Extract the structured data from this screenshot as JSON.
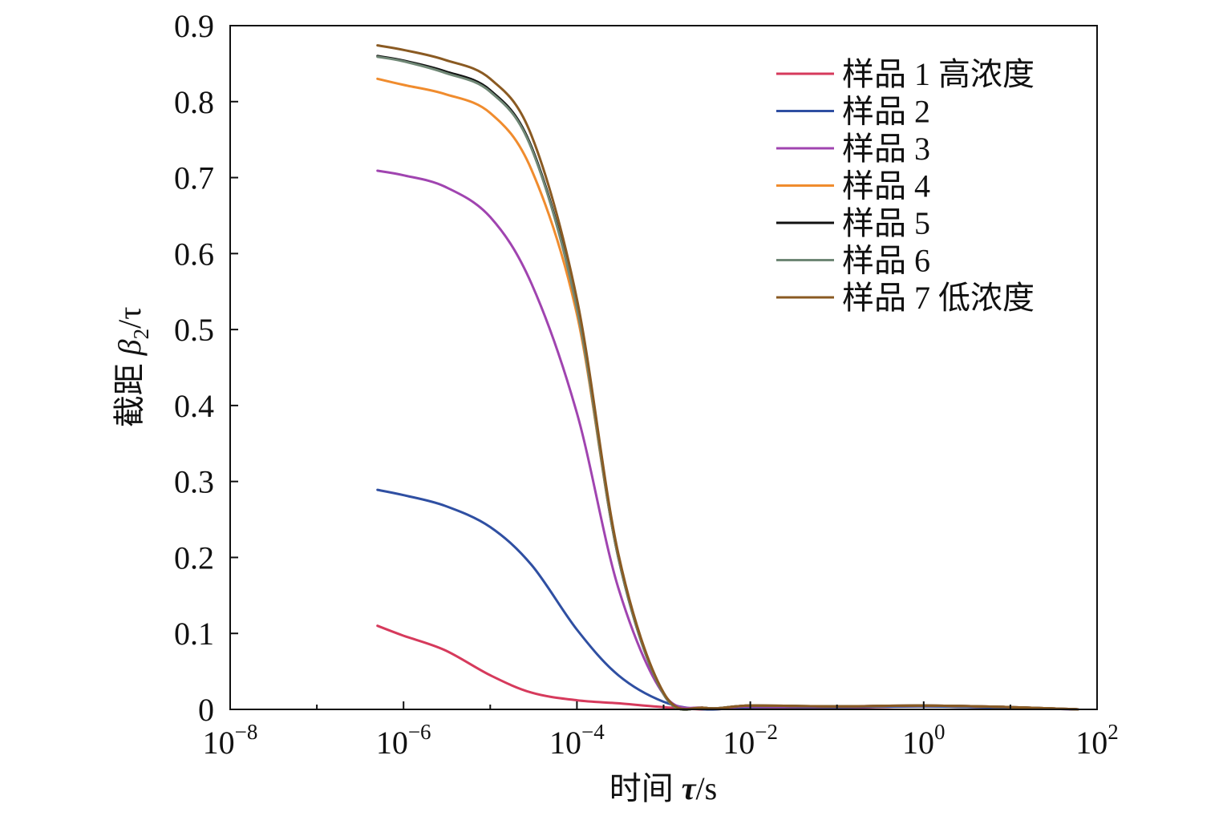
{
  "chart_data": {
    "type": "line",
    "xscale": "log",
    "xlabel": "时间 τ/s",
    "ylabel": "截距 β2/τ",
    "xlim": [
      1e-08,
      100
    ],
    "ylim": [
      0,
      0.9
    ],
    "x_ticks": [
      {
        "value": 1e-08,
        "base": "10",
        "exp": "−8"
      },
      {
        "value": 1e-06,
        "base": "10",
        "exp": "−6"
      },
      {
        "value": 0.0001,
        "base": "10",
        "exp": "−4"
      },
      {
        "value": 0.01,
        "base": "10",
        "exp": "−2"
      },
      {
        "value": 1,
        "base": "10",
        "exp": "0"
      },
      {
        "value": 100,
        "base": "10",
        "exp": "2"
      }
    ],
    "y_ticks": [
      {
        "value": 0,
        "label": "0"
      },
      {
        "value": 0.1,
        "label": "0.1"
      },
      {
        "value": 0.2,
        "label": "0.2"
      },
      {
        "value": 0.3,
        "label": "0.3"
      },
      {
        "value": 0.4,
        "label": "0.4"
      },
      {
        "value": 0.5,
        "label": "0.5"
      },
      {
        "value": 0.6,
        "label": "0.6"
      },
      {
        "value": 0.7,
        "label": "0.7"
      },
      {
        "value": 0.8,
        "label": "0.8"
      },
      {
        "value": 0.9,
        "label": "0.9"
      }
    ],
    "grid": false,
    "legend_position": "top-right",
    "x": [
      5e-07,
      1e-06,
      3e-06,
      1e-05,
      3e-05,
      0.0001,
      0.0003,
      0.001,
      0.003,
      0.01,
      0.1,
      1,
      10,
      60
    ],
    "series": [
      {
        "name": "样品 1 高浓度",
        "color": "#d63a5c",
        "values": [
          0.11,
          0.097,
          0.078,
          0.045,
          0.022,
          0.012,
          0.008,
          0.003,
          0.0,
          0.002,
          0.002,
          0.004,
          0.002,
          0.0
        ]
      },
      {
        "name": "样品 2",
        "color": "#2f4fa2",
        "values": [
          0.289,
          0.282,
          0.268,
          0.24,
          0.19,
          0.105,
          0.045,
          0.01,
          0.0,
          0.003,
          0.003,
          0.004,
          0.002,
          0.0
        ]
      },
      {
        "name": "样品 3",
        "color": "#a044b0",
        "values": [
          0.709,
          0.703,
          0.688,
          0.648,
          0.56,
          0.39,
          0.16,
          0.02,
          0.002,
          0.004,
          0.004,
          0.005,
          0.003,
          0.0
        ]
      },
      {
        "name": "样品 4",
        "color": "#f08c2e",
        "values": [
          0.83,
          0.822,
          0.81,
          0.785,
          0.71,
          0.52,
          0.2,
          0.02,
          0.002,
          0.005,
          0.004,
          0.005,
          0.003,
          0.0
        ]
      },
      {
        "name": "样品 5",
        "color": "#111111",
        "values": [
          0.86,
          0.854,
          0.84,
          0.815,
          0.74,
          0.53,
          0.2,
          0.02,
          0.002,
          0.005,
          0.004,
          0.005,
          0.003,
          0.0
        ]
      },
      {
        "name": "样品 6",
        "color": "#6f8775",
        "values": [
          0.859,
          0.853,
          0.838,
          0.813,
          0.738,
          0.528,
          0.2,
          0.02,
          0.002,
          0.005,
          0.004,
          0.005,
          0.003,
          0.0
        ]
      },
      {
        "name": "样品 7 低浓度",
        "color": "#8a5a22",
        "values": [
          0.874,
          0.868,
          0.855,
          0.83,
          0.755,
          0.54,
          0.205,
          0.022,
          0.002,
          0.005,
          0.004,
          0.005,
          0.003,
          0.0
        ]
      }
    ]
  }
}
